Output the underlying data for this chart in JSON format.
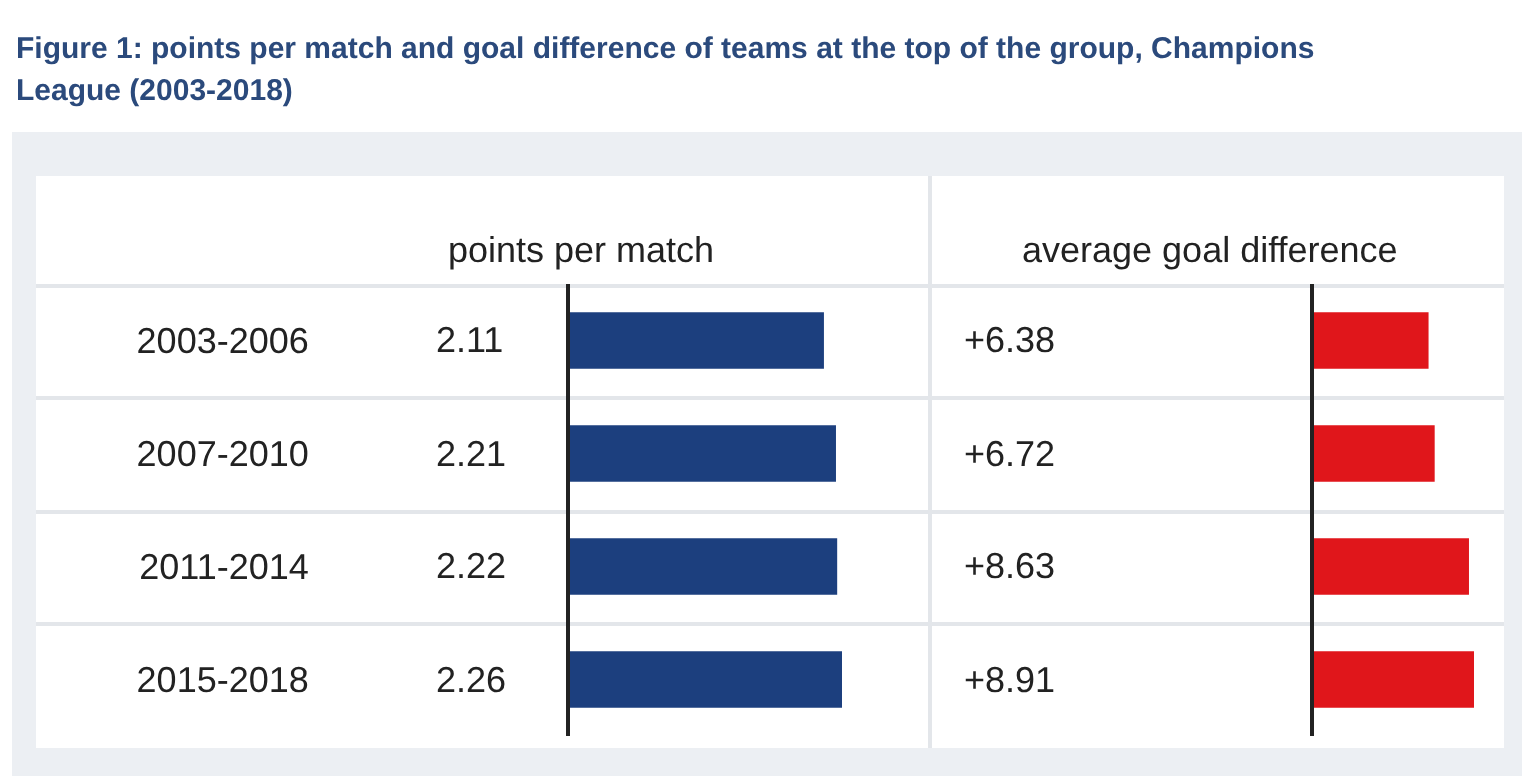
{
  "chart_data": [
    {
      "type": "bar",
      "title": "Figure 1: points per match and goal difference of teams at the top of the group, Champions League (2003-2018)",
      "subtitle": "points per match",
      "orientation": "horizontal",
      "categories": [
        "2003-2006",
        "2007-2010",
        "2011-2014",
        "2015-2018"
      ],
      "values": [
        2.11,
        2.21,
        2.22,
        2.26
      ],
      "color": "#1c3f7e",
      "data_labels": true,
      "tick_labels": "y"
    },
    {
      "type": "bar",
      "title": "average goal difference",
      "orientation": "horizontal",
      "categories": [
        null,
        null,
        null,
        null
      ],
      "values": [
        6.38,
        6.72,
        8.63,
        8.91
      ],
      "value_labels": [
        "+6.38",
        "+6.72",
        "+8.63",
        "+8.91"
      ],
      "color": "#e0161b",
      "tick_labels": false
    }
  ]
}
